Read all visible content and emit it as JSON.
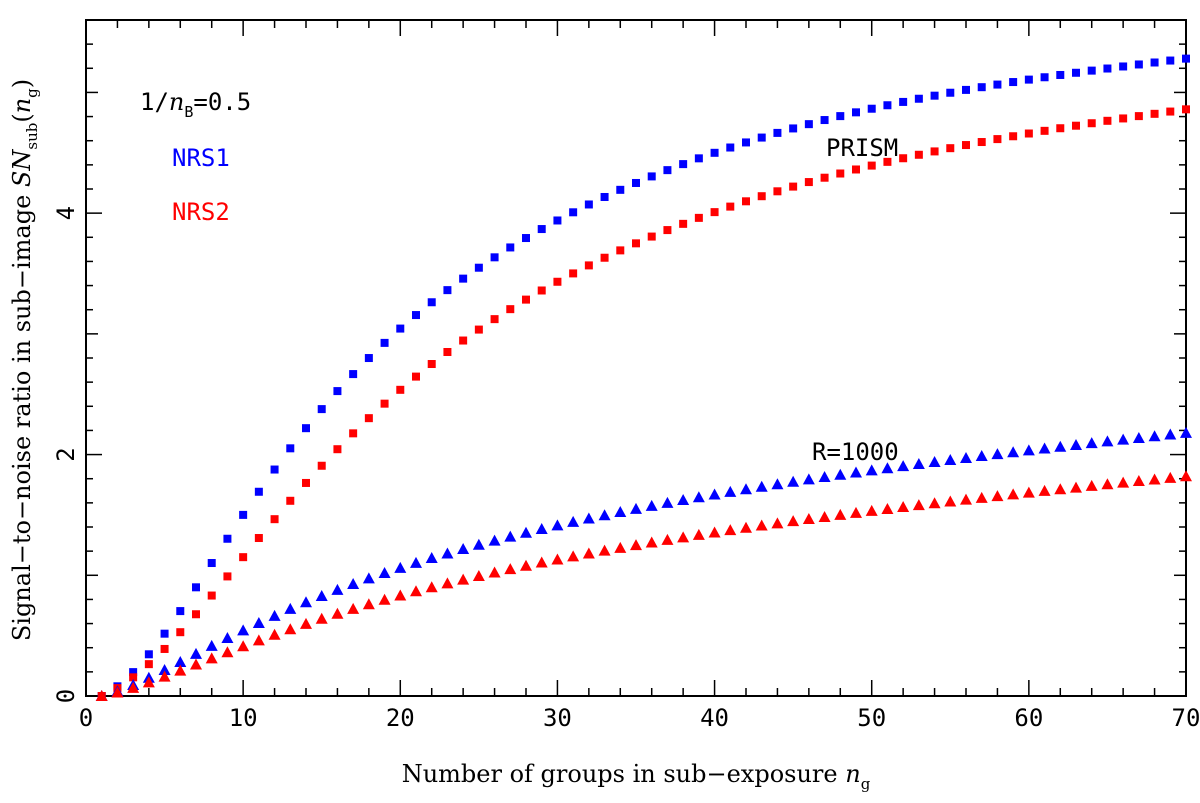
{
  "chart_data": {
    "type": "scatter",
    "xlabel_text": "Number of groups in sub−exposure",
    "xlabel_var": "n",
    "xlabel_sub": "g",
    "ylabel_text": "Signal−to−noise ratio in sub−image",
    "ylabel_var": "SN",
    "ylabel_sub": "sub",
    "ylabel_paren_var": "n",
    "ylabel_paren_sub": "g",
    "xlim": [
      0,
      70
    ],
    "ylim": [
      0,
      5.6
    ],
    "x_ticks": [
      "0",
      "10",
      "20",
      "30",
      "40",
      "50",
      "60",
      "70"
    ],
    "y_ticks": [
      "0",
      "2",
      "4"
    ],
    "parameter_label": {
      "prefix": "1/",
      "var": "n",
      "sub": "B",
      "suffix": "=0.5"
    },
    "legend": [
      {
        "label": "NRS1",
        "color": "#0000ff"
      },
      {
        "label": "NRS2",
        "color": "#ff0000"
      }
    ],
    "group_labels": {
      "prism": "PRISM",
      "r1000": "R=1000"
    },
    "series": [
      {
        "name": "PRISM NRS1",
        "color": "#0000ff",
        "marker": "square",
        "endpoint": 5.28,
        "mid": 4.25,
        "alpha": 1.9,
        "tau": 13
      },
      {
        "name": "PRISM NRS2",
        "color": "#ff0000",
        "marker": "square",
        "endpoint": 4.86,
        "mid": 3.75,
        "alpha": 1.9,
        "tau": 16
      },
      {
        "name": "R=1000 NRS1",
        "color": "#0000ff",
        "marker": "triangle",
        "endpoint": 2.18,
        "mid": 1.55,
        "alpha": 1.5,
        "tau": 16
      },
      {
        "name": "R=1000 NRS2",
        "color": "#ff0000",
        "marker": "triangle",
        "endpoint": 1.82,
        "mid": 1.25,
        "alpha": 1.5,
        "tau": 18
      }
    ]
  }
}
